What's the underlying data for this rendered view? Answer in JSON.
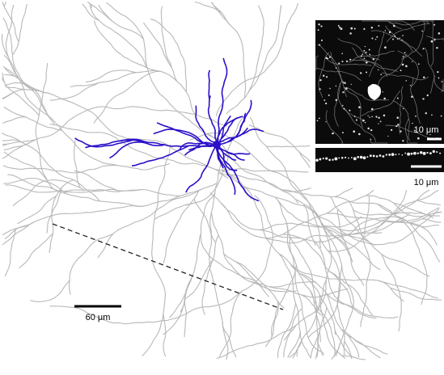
{
  "figure": {
    "main_scale_bar": {
      "label": "60 μm"
    },
    "inset_top": {
      "scale_bar": {
        "label": "10 μm"
      }
    },
    "inset_bottom": {
      "scale_bar": {
        "label": "10 μm"
      }
    }
  }
}
